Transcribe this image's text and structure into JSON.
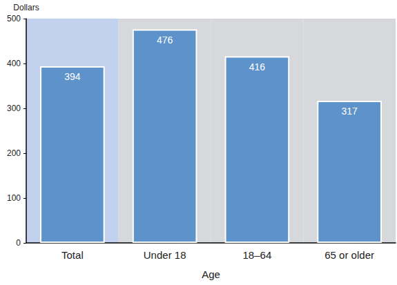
{
  "chart_data": {
    "type": "bar",
    "categories": [
      "Total",
      "Under 18",
      "18–64",
      "65 or older"
    ],
    "values": [
      394,
      476,
      416,
      317
    ],
    "color": "#5e92cb",
    "x_label": "Age",
    "y_label": "Dollars",
    "ylim": [
      0,
      500
    ],
    "yticks": [
      0,
      100,
      200,
      300,
      400,
      500
    ],
    "data_labels": true,
    "grid": false
  }
}
